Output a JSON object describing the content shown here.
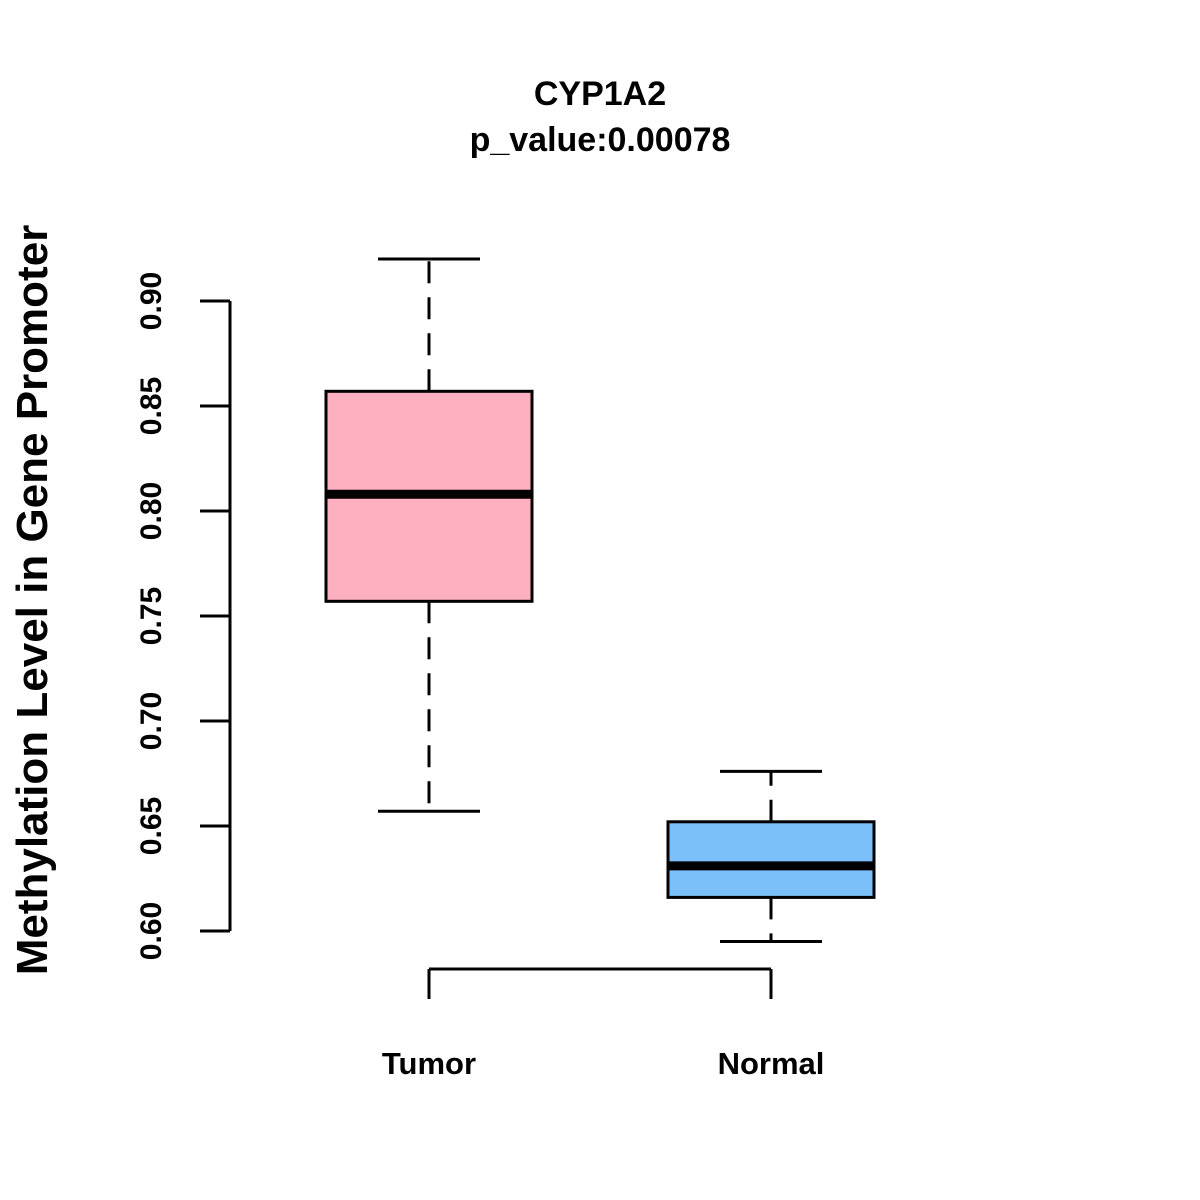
{
  "chart_data": {
    "type": "boxplot",
    "title": "CYP1A2",
    "subtitle": "p_value:0.00078",
    "xlabel": "",
    "ylabel": "Methylation Level in Gene Promoter",
    "ylim": [
      0.6,
      0.9
    ],
    "yticks": [
      "0.60",
      "0.65",
      "0.70",
      "0.75",
      "0.80",
      "0.85",
      "0.90"
    ],
    "categories": [
      "Tumor",
      "Normal"
    ],
    "boxes": [
      {
        "name": "Tumor",
        "whisker_low": 0.657,
        "q1": 0.757,
        "median": 0.808,
        "q3": 0.857,
        "whisker_high": 0.92,
        "color": "#FFB0C0"
      },
      {
        "name": "Normal",
        "whisker_low": 0.595,
        "q1": 0.616,
        "median": 0.631,
        "q3": 0.652,
        "whisker_high": 0.676,
        "color": "#7BC0F8"
      }
    ],
    "grid": false,
    "legend": "none"
  }
}
